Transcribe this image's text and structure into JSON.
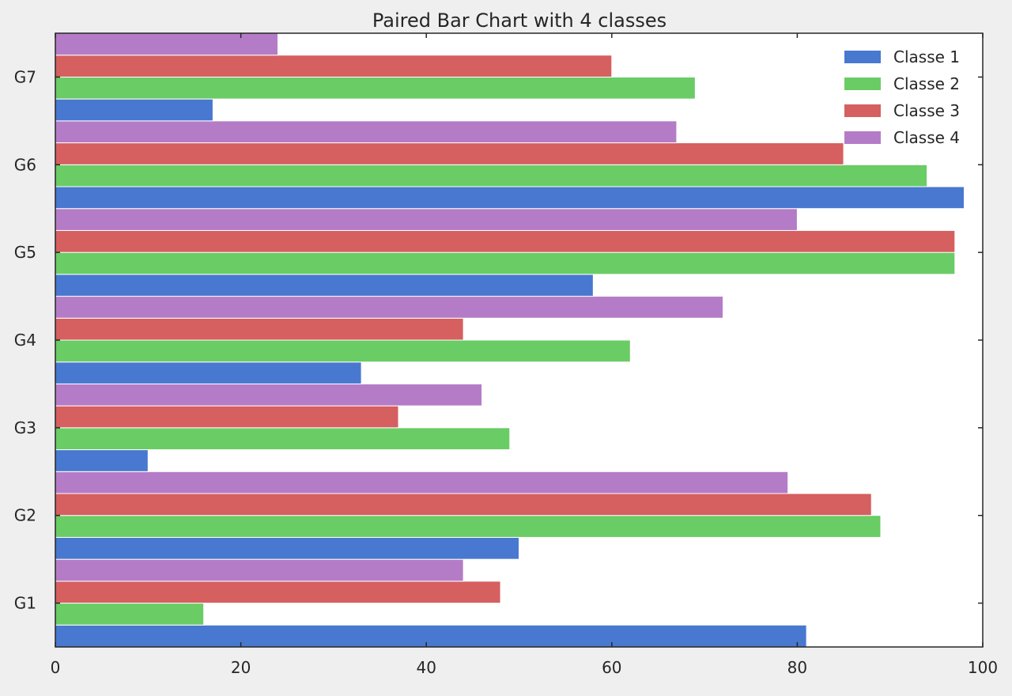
{
  "chart_data": {
    "type": "bar",
    "orientation": "horizontal",
    "title": "Paired Bar Chart with 4 classes",
    "xlabel": "",
    "ylabel": "",
    "categories": [
      "G1",
      "G2",
      "G3",
      "G4",
      "G5",
      "G6",
      "G7"
    ],
    "xlim": [
      0,
      100
    ],
    "x_ticks": [
      0,
      20,
      40,
      60,
      80,
      100
    ],
    "grid": false,
    "legend_position": "top-right",
    "series": [
      {
        "name": "Classe 1",
        "color": "#4878d0",
        "values": [
          81,
          50,
          10,
          33,
          58,
          98,
          17
        ]
      },
      {
        "name": "Classe 2",
        "color": "#6acc64",
        "values": [
          16,
          89,
          49,
          62,
          97,
          94,
          69
        ]
      },
      {
        "name": "Classe 3",
        "color": "#d65f5f",
        "values": [
          48,
          88,
          37,
          44,
          97,
          85,
          60
        ]
      },
      {
        "name": "Classe 4",
        "color": "#b47cc7",
        "values": [
          44,
          79,
          46,
          72,
          80,
          67,
          24
        ]
      }
    ]
  }
}
